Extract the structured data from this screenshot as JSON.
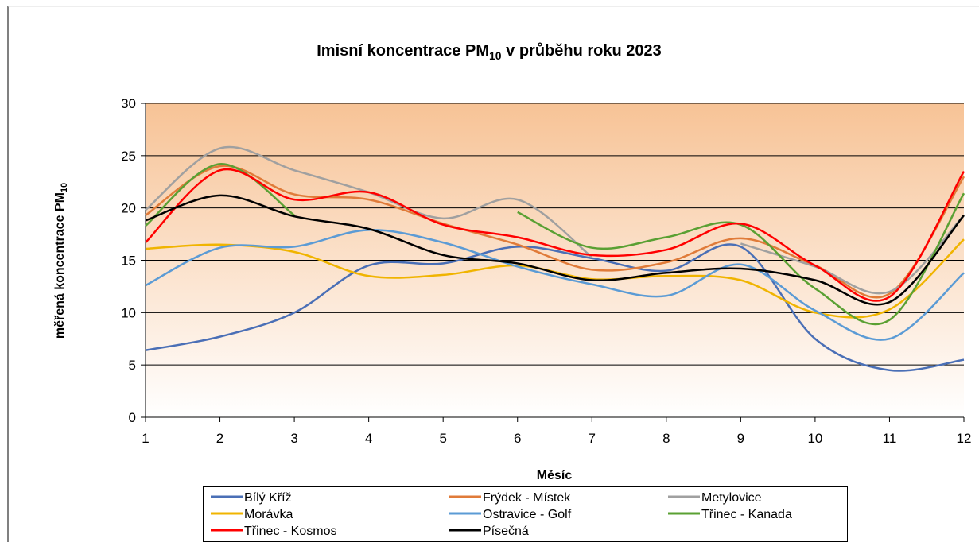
{
  "chart_data": {
    "type": "line",
    "title": [
      "Imisní koncentrace PM",
      "10",
      " v průběhu roku 2023"
    ],
    "y_label": [
      "měřená koncentrace PM",
      "10"
    ],
    "x_label": "Měsíc",
    "x": [
      1,
      2,
      3,
      4,
      5,
      6,
      7,
      8,
      9,
      10,
      11,
      12
    ],
    "xlim": [
      1,
      12
    ],
    "xticks": [
      1,
      2,
      3,
      4,
      5,
      6,
      7,
      8,
      9,
      10,
      11,
      12
    ],
    "ylim": [
      0,
      30
    ],
    "yticks": [
      0,
      5,
      10,
      15,
      20,
      25,
      30
    ],
    "grid": true,
    "legend": "bottom",
    "series": [
      {
        "name": "Bílý Kříž",
        "color": "#4a6fb6",
        "values": [
          6.4,
          7.7,
          10.0,
          14.5,
          14.7,
          16.3,
          15.2,
          14.0,
          16.3,
          7.5,
          4.5,
          5.5
        ]
      },
      {
        "name": "Frýdek - Místek",
        "color": "#e07b39",
        "values": [
          19.3,
          24.0,
          21.3,
          20.8,
          18.5,
          16.5,
          14.1,
          14.8,
          17.1,
          14.5,
          11.8,
          23.0
        ]
      },
      {
        "name": "Metylovice",
        "color": "#a0a0a0",
        "values": [
          19.8,
          25.7,
          23.6,
          21.5,
          19.0,
          20.8,
          15.3,
          null,
          16.6,
          14.4,
          12.0,
          19.3
        ]
      },
      {
        "name": "Morávka",
        "color": "#f0b400",
        "values": [
          16.1,
          16.5,
          15.8,
          13.5,
          13.6,
          14.5,
          13.2,
          13.5,
          13.1,
          10.0,
          10.3,
          17.0
        ]
      },
      {
        "name": "Ostravice - Golf",
        "color": "#5b9bd5",
        "values": [
          12.6,
          16.2,
          16.3,
          17.9,
          16.7,
          14.4,
          12.7,
          11.6,
          14.6,
          10.2,
          7.5,
          13.8
        ]
      },
      {
        "name": "Třinec - Kanada",
        "color": "#5aa033",
        "values": [
          18.3,
          24.2,
          19.3,
          null,
          null,
          19.6,
          16.2,
          17.2,
          18.4,
          12.3,
          9.3,
          21.4
        ]
      },
      {
        "name": "Třinec - Kosmos",
        "color": "#ff0000",
        "values": [
          16.7,
          23.6,
          20.8,
          21.5,
          18.4,
          17.2,
          15.5,
          16.0,
          18.5,
          14.5,
          11.5,
          23.5
        ]
      },
      {
        "name": "Písečná",
        "color": "#000000",
        "values": [
          18.8,
          21.2,
          19.2,
          18.0,
          15.5,
          14.7,
          13.1,
          13.8,
          14.2,
          13.1,
          11.0,
          19.3
        ]
      }
    ]
  }
}
